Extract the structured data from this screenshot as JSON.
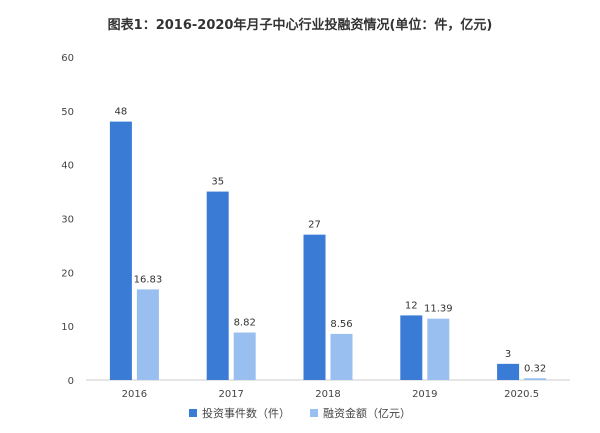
{
  "title": "图表1：2016-2020年月子中心行业投融资情况(单位：件，亿元)",
  "chart_data": {
    "type": "bar",
    "categories": [
      "2016",
      "2017",
      "2018",
      "2019",
      "2020.5"
    ],
    "series": [
      {
        "name": "投资事件数（件）",
        "values": [
          48,
          35,
          27,
          12,
          3
        ],
        "color": "#3a7bd5"
      },
      {
        "name": "融资金额（亿元）",
        "values": [
          16.83,
          8.82,
          8.56,
          11.39,
          0.32
        ],
        "color": "#98bff0"
      }
    ],
    "data_labels": [
      [
        "48",
        "35",
        "27",
        "12",
        "3"
      ],
      [
        "16.83",
        "8.82",
        "8.56",
        "11.39",
        "0.32"
      ]
    ],
    "ylim": [
      0,
      60
    ],
    "yticks": [
      "0",
      "10",
      "20",
      "30",
      "40",
      "50",
      "60"
    ],
    "grid": false,
    "legend_position": "bottom"
  }
}
